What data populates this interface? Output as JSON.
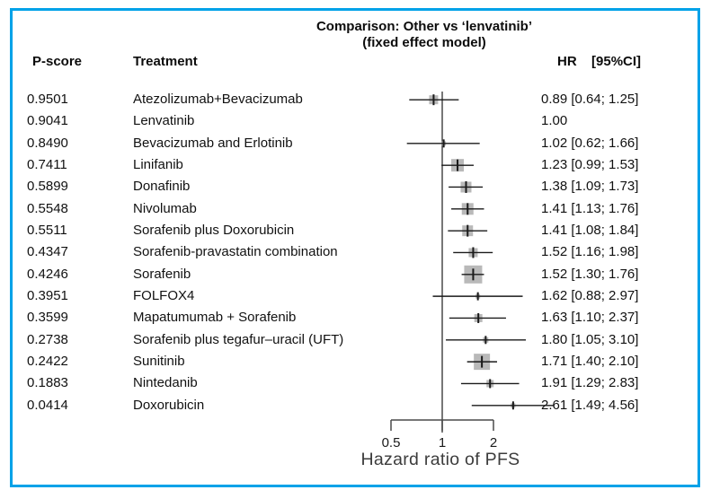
{
  "frame": {
    "border_color": "#00A2E8"
  },
  "title": {
    "line1": "Comparison: Other vs ‘lenvatinib’",
    "line2": "(fixed effect model)"
  },
  "headers": {
    "p_score": "P-score",
    "treatment": "Treatment",
    "hr": "HR",
    "ci": "[95%CI]"
  },
  "chart_data": {
    "type": "forest",
    "title": "Comparison: Other vs ‘lenvatinib’ (fixed effect model)",
    "xlabel": "Hazard ratio of PFS",
    "x_scale": "log",
    "x_ticks": [
      0.5,
      1,
      2
    ],
    "x_tick_labels": [
      "0.5",
      "1",
      "2"
    ],
    "ref_line": 1.0,
    "marker_color": "#ADADAD",
    "line_color": "#1a1a1a",
    "rows": [
      {
        "p_score": "0.9501",
        "treatment": "Atezolizumab+Bevacizumab",
        "hr": 0.89,
        "lo": 0.64,
        "hi": 1.25,
        "hr_label": "0.89 [0.64; 1.25]",
        "size": 10
      },
      {
        "p_score": "0.9041",
        "treatment": "Lenvatinib",
        "hr": 1.0,
        "lo": null,
        "hi": null,
        "hr_label": "1.00",
        "size": 0
      },
      {
        "p_score": "0.8490",
        "treatment": "Bevacizumab and Erlotinib",
        "hr": 1.02,
        "lo": 0.62,
        "hi": 1.66,
        "hr_label": "1.02 [0.62; 1.66]",
        "size": 5
      },
      {
        "p_score": "0.7411",
        "treatment": "Linifanib",
        "hr": 1.23,
        "lo": 0.99,
        "hi": 1.53,
        "hr_label": "1.23 [0.99; 1.53]",
        "size": 14
      },
      {
        "p_score": "0.5899",
        "treatment": "Donafinib",
        "hr": 1.38,
        "lo": 1.09,
        "hi": 1.73,
        "hr_label": "1.38 [1.09; 1.73]",
        "size": 12
      },
      {
        "p_score": "0.5548",
        "treatment": "Nivolumab",
        "hr": 1.41,
        "lo": 1.13,
        "hi": 1.76,
        "hr_label": "1.41 [1.13; 1.76]",
        "size": 13
      },
      {
        "p_score": "0.5511",
        "treatment": "Sorafenib plus Doxorubicin",
        "hr": 1.41,
        "lo": 1.08,
        "hi": 1.84,
        "hr_label": "1.41 [1.08; 1.84]",
        "size": 12
      },
      {
        "p_score": "0.4347",
        "treatment": "Sorafenib-pravastatin combination",
        "hr": 1.52,
        "lo": 1.16,
        "hi": 1.98,
        "hr_label": "1.52 [1.16; 1.98]",
        "size": 10
      },
      {
        "p_score": "0.4246",
        "treatment": "Sorafenib",
        "hr": 1.52,
        "lo": 1.3,
        "hi": 1.76,
        "hr_label": "1.52 [1.30; 1.76]",
        "size": 20
      },
      {
        "p_score": "0.3951",
        "treatment": "FOLFOX4",
        "hr": 1.62,
        "lo": 0.88,
        "hi": 2.97,
        "hr_label": "1.62 [0.88; 2.97]",
        "size": 5
      },
      {
        "p_score": "0.3599",
        "treatment": "Mapatumumab + Sorafenib",
        "hr": 1.63,
        "lo": 1.1,
        "hi": 2.37,
        "hr_label": "1.63 [1.10; 2.37]",
        "size": 9
      },
      {
        "p_score": "0.2738",
        "treatment": "Sorafenib plus tegafur–uracil (UFT)",
        "hr": 1.8,
        "lo": 1.05,
        "hi": 3.1,
        "hr_label": "1.80 [1.05; 3.10]",
        "size": 6
      },
      {
        "p_score": "0.2422",
        "treatment": "Sunitinib",
        "hr": 1.71,
        "lo": 1.4,
        "hi": 2.1,
        "hr_label": "1.71 [1.40; 2.10]",
        "size": 18
      },
      {
        "p_score": "0.1883",
        "treatment": "Nintedanib",
        "hr": 1.91,
        "lo": 1.29,
        "hi": 2.83,
        "hr_label": "1.91 [1.29; 2.83]",
        "size": 8
      },
      {
        "p_score": "0.0414",
        "treatment": "Doxorubicin",
        "hr": 2.61,
        "lo": 1.49,
        "hi": 4.56,
        "hr_label": "2.61 [1.49; 4.56]",
        "size": 5
      }
    ]
  }
}
